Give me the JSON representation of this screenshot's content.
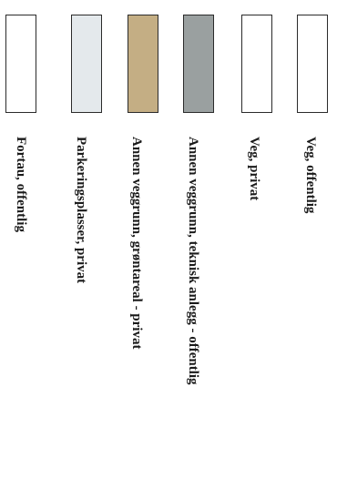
{
  "legend": {
    "items": [
      {
        "label": "Veg, offentlig",
        "color": "#ffffff"
      },
      {
        "label": "Veg, privat",
        "color": "#ffffff"
      },
      {
        "label": "Annen veggrunn, teknisk anlegg - offentlig",
        "color": "#9aa0a0"
      },
      {
        "label": "Annen veggrunn, grøntareal - privat",
        "color": "#c4ae84"
      },
      {
        "label": "Parkeringsplasser, privat",
        "color": "#e4e9ec"
      },
      {
        "label": "Fortau, offentlig",
        "color": "#ffffff"
      }
    ]
  }
}
